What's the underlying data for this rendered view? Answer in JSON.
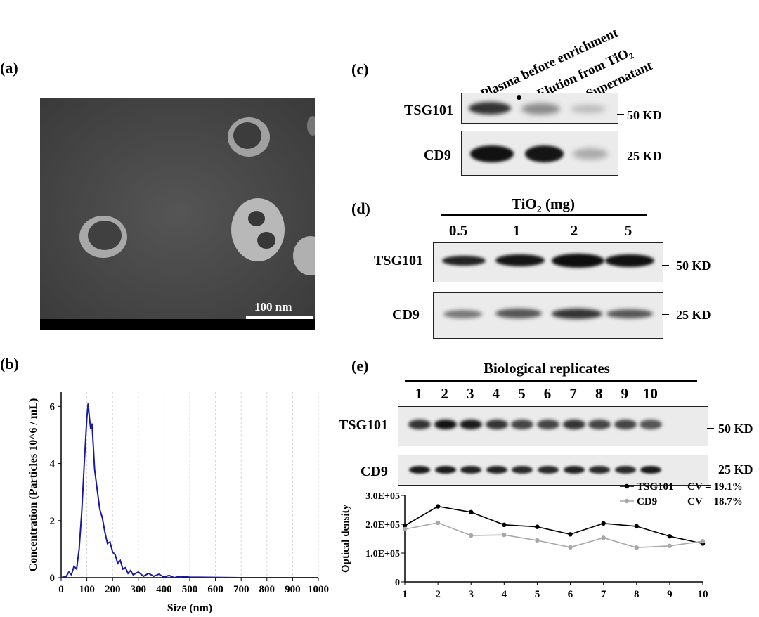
{
  "panels": {
    "a": {
      "label": "(a)",
      "scale_bar": "100 nm"
    },
    "b": {
      "label": "(b)"
    },
    "c": {
      "label": "(c)",
      "lanes": [
        "Plasma before enrichment",
        "Elution from TiO₂",
        "Supernatant"
      ],
      "rows": [
        {
          "protein": "TSG101",
          "marker": "50 KD"
        },
        {
          "protein": "CD9",
          "marker": "25 KD"
        }
      ]
    },
    "d": {
      "label": "(d)",
      "title": "TiO₂ (mg)",
      "lanes": [
        "0.5",
        "1",
        "2",
        "5"
      ],
      "rows": [
        {
          "protein": "TSG101",
          "marker": "50 KD"
        },
        {
          "protein": "CD9",
          "marker": "25 KD"
        }
      ]
    },
    "e": {
      "label": "(e)",
      "title": "Biological replicates",
      "lanes": [
        "1",
        "2",
        "3",
        "4",
        "5",
        "6",
        "7",
        "8",
        "9",
        "10"
      ],
      "rows": [
        {
          "protein": "TSG101",
          "marker": "50 KD"
        },
        {
          "protein": "CD9",
          "marker": "25 KD"
        }
      ]
    }
  },
  "chart_data": [
    {
      "id": "b",
      "type": "line",
      "xlabel": "Size (nm)",
      "ylabel": "Concentration (Particles 10^6 / mL)",
      "xlim": [
        0,
        1000
      ],
      "ylim": [
        0,
        6.5
      ],
      "xticks": [
        0,
        100,
        200,
        300,
        400,
        500,
        600,
        700,
        800,
        900,
        1000
      ],
      "yticks": [
        0,
        2,
        4,
        6
      ],
      "grid": "dashed vertical",
      "color": "#1a1aa0",
      "x": [
        0,
        20,
        30,
        40,
        50,
        60,
        70,
        80,
        90,
        100,
        105,
        110,
        115,
        120,
        125,
        130,
        140,
        150,
        160,
        170,
        180,
        190,
        200,
        210,
        220,
        230,
        240,
        250,
        260,
        270,
        280,
        290,
        300,
        320,
        340,
        360,
        380,
        400,
        420,
        440,
        460,
        500,
        600,
        700,
        800,
        900,
        1000
      ],
      "y": [
        0,
        0.05,
        0.2,
        0.1,
        0.4,
        0.3,
        1.0,
        2.3,
        4.0,
        5.6,
        6.1,
        5.6,
        5.2,
        5.4,
        4.6,
        3.8,
        3.1,
        2.4,
        2.1,
        1.6,
        1.2,
        1.25,
        0.9,
        0.8,
        0.5,
        0.6,
        0.3,
        0.35,
        0.15,
        0.25,
        0.1,
        0.15,
        0.2,
        0.05,
        0.15,
        0.05,
        0.12,
        0.02,
        0.08,
        0.0,
        0.05,
        0.02,
        0.01,
        0.0,
        0.0,
        0.0,
        0.0
      ]
    },
    {
      "id": "e-od",
      "type": "line",
      "ylabel": "Optical density",
      "x": [
        1,
        2,
        3,
        4,
        5,
        6,
        7,
        8,
        9,
        10
      ],
      "xlim": [
        1,
        10
      ],
      "ylim": [
        0,
        300000
      ],
      "yticks": [
        "0",
        "1.0E+05",
        "2.0E+05",
        "3.0E+05"
      ],
      "legend": "top-right",
      "series": [
        {
          "name": "TSG101",
          "cv": "CV = 19.1%",
          "color": "#000000",
          "values": [
            195000,
            262000,
            242000,
            198000,
            191000,
            165000,
            203000,
            193000,
            158000,
            133000
          ]
        },
        {
          "name": "CD9",
          "cv": "CV = 18.7%",
          "color": "#a8a8a8",
          "values": [
            183000,
            205000,
            161000,
            163000,
            144000,
            120000,
            153000,
            119000,
            125000,
            141000
          ]
        }
      ]
    }
  ]
}
